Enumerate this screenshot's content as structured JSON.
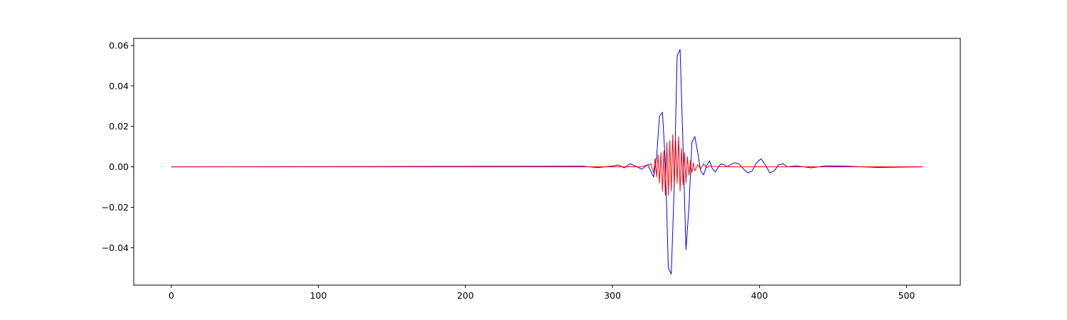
{
  "chart_data": {
    "type": "line",
    "title": "",
    "xlabel": "",
    "ylabel": "",
    "xlim": [
      -25.55,
      536.55
    ],
    "ylim": [
      -0.0585,
      0.0635
    ],
    "xticks": [
      0,
      100,
      200,
      300,
      400,
      500
    ],
    "xtick_labels": [
      "0",
      "100",
      "200",
      "300",
      "400",
      "500"
    ],
    "yticks": [
      -0.04,
      -0.02,
      0.0,
      0.02,
      0.04,
      0.06
    ],
    "ytick_labels": [
      "−0.04",
      "−0.02",
      "0.00",
      "0.02",
      "0.04",
      "0.06"
    ],
    "grid": false,
    "legend": "none",
    "series": [
      {
        "color": "#0000ff",
        "x": [
          0,
          280,
          290,
          300,
          304,
          308,
          312,
          316,
          320,
          324,
          326,
          328,
          330,
          332,
          334,
          336,
          338,
          340,
          342,
          344,
          346,
          348,
          350,
          352,
          354,
          356,
          358,
          360,
          362,
          364,
          366,
          368,
          370,
          372,
          374,
          376,
          378,
          380,
          383,
          386,
          389,
          392,
          395,
          398,
          401,
          404,
          407,
          410,
          413,
          416,
          419,
          425,
          435,
          445,
          460,
          480,
          511
        ],
        "y": [
          0.0,
          0.0003,
          -0.0004,
          0.0004,
          0.0009,
          -0.0005,
          0.0015,
          0.0003,
          -0.0012,
          0.001,
          -0.002,
          -0.005,
          0.005,
          0.025,
          0.027,
          0.002,
          -0.05,
          -0.053,
          -0.01,
          0.055,
          0.058,
          0.01,
          -0.041,
          -0.02,
          0.012,
          0.015,
          0.007,
          -0.002,
          -0.004,
          0.0005,
          0.003,
          -0.001,
          -0.0025,
          0.0,
          0.0015,
          0.001,
          0.0,
          0.001,
          0.002,
          0.0015,
          -0.001,
          -0.003,
          -0.002,
          0.002,
          0.004,
          0.001,
          -0.003,
          -0.002,
          0.001,
          0.0015,
          0.0,
          0.0005,
          -0.0005,
          0.0005,
          0.0003,
          -0.0003,
          0.0
        ]
      },
      {
        "color": "#ff0000",
        "x": [
          0,
          300,
          320,
          326,
          328,
          329,
          330,
          331,
          332,
          333,
          334,
          335,
          336,
          337,
          338,
          339,
          340,
          341,
          342,
          343,
          344,
          345,
          346,
          347,
          348,
          349,
          350,
          351,
          352,
          353,
          354,
          355,
          356,
          358,
          360,
          362,
          364,
          366,
          370,
          380,
          400,
          511
        ],
        "y": [
          0.0,
          0.0,
          0.0,
          0.0015,
          -0.003,
          0.004,
          -0.005,
          0.006,
          -0.008,
          0.007,
          -0.012,
          0.008,
          -0.014,
          0.012,
          -0.014,
          0.013,
          -0.012,
          0.016,
          -0.01,
          0.013,
          -0.008,
          0.015,
          -0.012,
          0.009,
          -0.009,
          0.007,
          -0.008,
          0.005,
          -0.004,
          0.003,
          -0.003,
          0.002,
          -0.002,
          0.001,
          -0.001,
          0.0015,
          -0.0005,
          0.0005,
          0.0002,
          0.0,
          0.0,
          0.0
        ]
      }
    ]
  }
}
